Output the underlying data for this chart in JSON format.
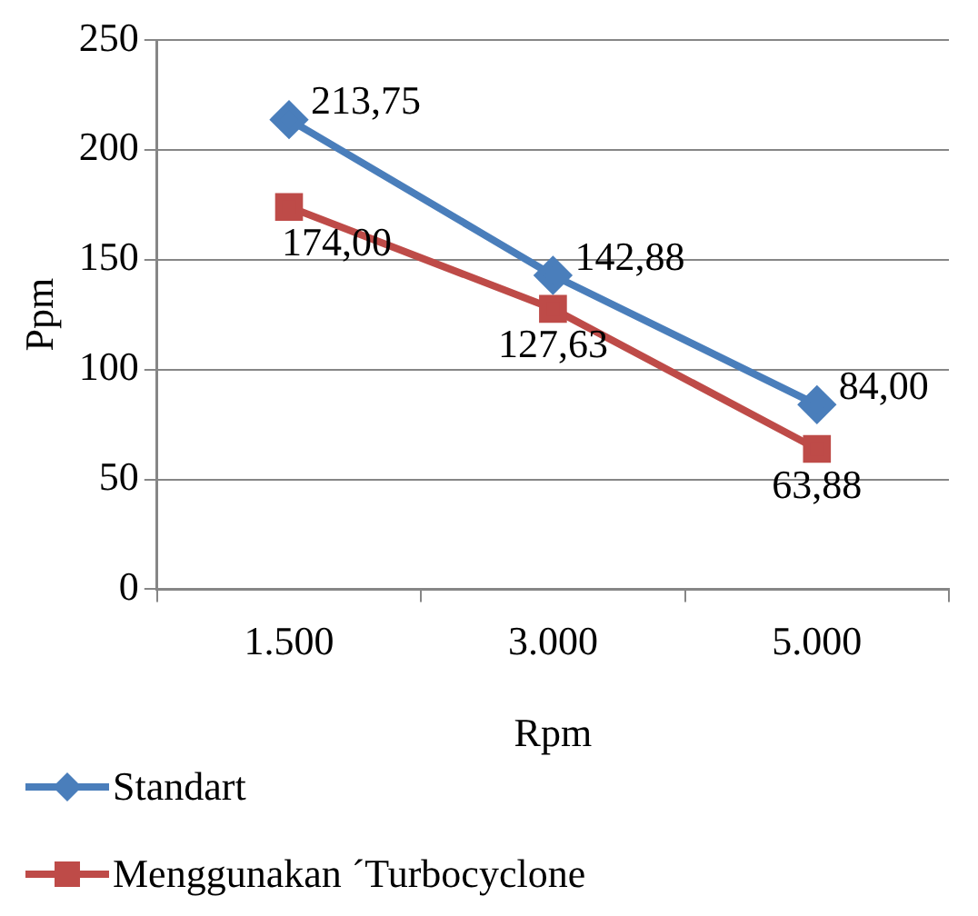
{
  "chart_data": {
    "type": "line",
    "xlabel": "Rpm",
    "ylabel": "Ppm",
    "categories": [
      "1.500",
      "3.000",
      "5.000"
    ],
    "series": [
      {
        "name": "Standart",
        "color": "#4a7ebb",
        "marker": "diamond",
        "values": [
          213.75,
          142.88,
          84.0
        ],
        "value_labels": [
          "213,75",
          "142,88",
          "84,00"
        ]
      },
      {
        "name": "Menggunakan ´Turbocyclone",
        "color": "#be4b48",
        "marker": "square",
        "values": [
          174.0,
          127.63,
          63.88
        ],
        "value_labels": [
          "174,00",
          "127,63",
          "63,88"
        ]
      }
    ],
    "ylim": [
      0,
      250
    ],
    "yticks": [
      0,
      50,
      100,
      150,
      200,
      250
    ],
    "grid": "y",
    "legend": "bottom left"
  }
}
